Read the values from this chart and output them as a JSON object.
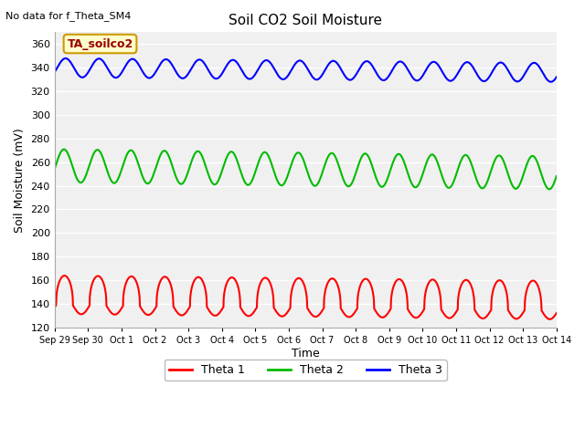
{
  "title": "Soil CO2 Soil Moisture",
  "no_data_text": "No data for f_Theta_SM4",
  "ylabel": "Soil Moisture (mV)",
  "xlabel": "Time",
  "ylim": [
    120,
    370
  ],
  "yticks": [
    120,
    140,
    160,
    180,
    200,
    220,
    240,
    260,
    280,
    300,
    320,
    340,
    360
  ],
  "xtick_labels": [
    "Sep 29",
    "Sep 30",
    "Oct 1",
    "Oct 2",
    "Oct 3",
    "Oct 4",
    "Oct 5",
    "Oct 6",
    "Oct 7",
    "Oct 8",
    "Oct 9",
    "Oct 10",
    "Oct 11",
    "Oct 12",
    "Oct 13",
    "Oct 14"
  ],
  "legend_box_text": "TA_soilco2",
  "legend_box_color": "#ffffcc",
  "legend_box_border": "#cc9900",
  "bg_color": "#ffffff",
  "plot_bg_color": "#f0f0f0",
  "theta1_color": "#ff0000",
  "theta2_color": "#00bb00",
  "theta3_color": "#0000ff",
  "title_fontsize": 11,
  "tick_fontsize": 8,
  "xlabel_fontsize": 9,
  "ylabel_fontsize": 9
}
